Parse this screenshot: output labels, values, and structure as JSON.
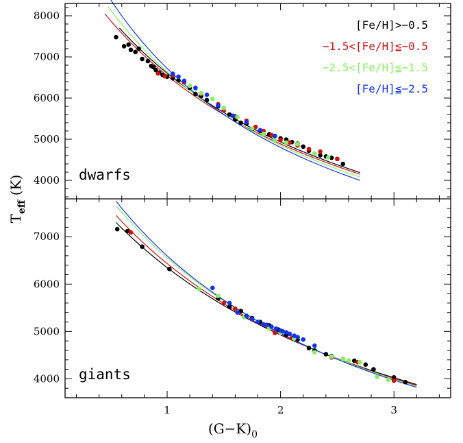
{
  "chart_data": [
    {
      "type": "scatter",
      "panel": "dwarfs",
      "label": "dwarfs",
      "xlabel_main": "(G−K)",
      "xlabel_sub": "0",
      "ylabel_main": "T",
      "ylabel_sub": "eff",
      "ylabel_unit": " (K)",
      "xlim": [
        0.1,
        3.5
      ],
      "ylim": [
        3550,
        8300
      ],
      "xticks": [
        1,
        2,
        3
      ],
      "yticks": [
        4000,
        5000,
        6000,
        7000,
        8000
      ],
      "grid": false,
      "legend_position": "top-right",
      "series": [
        {
          "name": "[Fe/H]>−0.5",
          "color": "#000000",
          "curve": {
            "a": 0.0,
            "x": [
              0.58,
              2.7
            ],
            "t": [
              7700,
              4190
            ]
          },
          "points": [
            [
              0.55,
              7480
            ],
            [
              0.62,
              7260
            ],
            [
              0.66,
              7300
            ],
            [
              0.68,
              7170
            ],
            [
              0.72,
              7120
            ],
            [
              0.75,
              7200
            ],
            [
              0.78,
              6950
            ],
            [
              0.83,
              6900
            ],
            [
              0.86,
              6780
            ],
            [
              0.88,
              6750
            ],
            [
              0.9,
              6680
            ],
            [
              0.93,
              6620
            ],
            [
              0.96,
              6560
            ],
            [
              1.0,
              6520
            ],
            [
              1.05,
              6480
            ],
            [
              1.1,
              6430
            ],
            [
              1.2,
              6250
            ],
            [
              1.25,
              6100
            ],
            [
              1.3,
              6050
            ],
            [
              1.35,
              5950
            ],
            [
              1.45,
              5800
            ],
            [
              1.55,
              5600
            ],
            [
              1.6,
              5480
            ],
            [
              1.65,
              5400
            ],
            [
              1.7,
              5380
            ],
            [
              1.75,
              5250
            ],
            [
              1.82,
              5200
            ],
            [
              1.9,
              5120
            ],
            [
              1.95,
              5080
            ],
            [
              2.0,
              5020
            ],
            [
              2.05,
              4990
            ],
            [
              2.1,
              4930
            ],
            [
              2.15,
              4890
            ],
            [
              2.2,
              4820
            ],
            [
              2.25,
              4720
            ],
            [
              2.3,
              4650
            ],
            [
              2.35,
              4610
            ],
            [
              2.4,
              4580
            ],
            [
              2.45,
              4550
            ],
            [
              2.5,
              4520
            ],
            [
              2.55,
              4400
            ]
          ]
        },
        {
          "name": "−1.5<[Fe/H]≦−0.5",
          "color": "#cc1111",
          "curve": {
            "a": 0.0,
            "x": [
              0.45,
              2.7
            ],
            "t": [
              8050,
              4150
            ]
          },
          "points": [
            [
              0.92,
              6600
            ],
            [
              0.98,
              6530
            ],
            [
              1.05,
              6550
            ],
            [
              1.15,
              6380
            ],
            [
              1.3,
              6100
            ],
            [
              1.45,
              5850
            ],
            [
              1.5,
              5700
            ],
            [
              1.6,
              5560
            ],
            [
              1.7,
              5450
            ],
            [
              1.78,
              5300
            ],
            [
              1.85,
              5200
            ],
            [
              1.92,
              5100
            ],
            [
              2.0,
              4980
            ],
            [
              2.08,
              4920
            ],
            [
              2.15,
              4850
            ],
            [
              2.25,
              4760
            ],
            [
              2.35,
              4700
            ],
            [
              2.5,
              4520
            ]
          ]
        },
        {
          "name": "−2.5<[Fe/H]≦−1.5",
          "color": "#88ee66",
          "curve": {
            "a": 0.0,
            "x": [
              0.48,
              2.7
            ],
            "t": [
              8220,
              4080
            ]
          },
          "points": [
            [
              1.2,
              6300
            ],
            [
              1.25,
              6220
            ],
            [
              1.3,
              6120
            ],
            [
              1.4,
              5980
            ],
            [
              1.5,
              5760
            ],
            [
              1.62,
              5540
            ],
            [
              1.75,
              5260
            ],
            [
              1.85,
              5130
            ],
            [
              1.95,
              4980
            ],
            [
              2.05,
              4920
            ],
            [
              2.15,
              4880
            ],
            [
              2.3,
              4650
            ],
            [
              2.42,
              4560
            ]
          ]
        },
        {
          "name": "[Fe/H]≦−2.5",
          "color": "#1133ee",
          "curve": {
            "a": 0.0,
            "x": [
              0.5,
              2.7
            ],
            "t": [
              8400,
              4000
            ]
          },
          "points": [
            [
              1.05,
              6590
            ],
            [
              1.1,
              6520
            ],
            [
              1.15,
              6420
            ],
            [
              1.25,
              6250
            ],
            [
              1.35,
              6080
            ],
            [
              1.45,
              5820
            ],
            [
              1.58,
              5570
            ],
            [
              1.7,
              5410
            ],
            [
              1.82,
              5220
            ],
            [
              1.95,
              5080
            ]
          ]
        }
      ]
    },
    {
      "type": "scatter",
      "panel": "giants",
      "label": "giants",
      "xlim": [
        0.1,
        3.5
      ],
      "ylim": [
        3600,
        7800
      ],
      "xticks": [
        1,
        2,
        3
      ],
      "yticks": [
        4000,
        5000,
        6000,
        7000
      ],
      "grid": false,
      "series": [
        {
          "name": "[Fe/H]>−0.5",
          "color": "#000000",
          "curve": {
            "a": 0.0,
            "x": [
              0.55,
              3.2
            ],
            "t": [
              7300,
              3880
            ]
          },
          "points": [
            [
              0.56,
              7160
            ],
            [
              0.65,
              7120
            ],
            [
              0.78,
              6790
            ],
            [
              1.02,
              6320
            ],
            [
              1.45,
              5700
            ],
            [
              1.55,
              5520
            ],
            [
              1.65,
              5430
            ],
            [
              1.75,
              5280
            ],
            [
              1.82,
              5200
            ],
            [
              1.9,
              5130
            ],
            [
              1.98,
              5040
            ],
            [
              2.05,
              4930
            ],
            [
              2.15,
              4830
            ],
            [
              2.25,
              4650
            ],
            [
              2.3,
              4600
            ],
            [
              2.4,
              4520
            ],
            [
              2.45,
              4480
            ],
            [
              2.55,
              4420
            ],
            [
              2.65,
              4380
            ],
            [
              2.75,
              4300
            ],
            [
              2.82,
              4200
            ],
            [
              3.0,
              4030
            ],
            [
              3.1,
              3930
            ]
          ]
        },
        {
          "name": "−1.5<[Fe/H]≦−0.5",
          "color": "#cc1111",
          "curve": {
            "a": 0.0,
            "x": [
              0.55,
              3.2
            ],
            "t": [
              7450,
              3860
            ]
          },
          "points": [
            [
              0.68,
              7090
            ],
            [
              1.5,
              5600
            ],
            [
              1.6,
              5480
            ],
            [
              1.95,
              4970
            ],
            [
              2.1,
              4870
            ],
            [
              2.45,
              4450
            ],
            [
              2.68,
              4350
            ],
            [
              3.0,
              3960
            ]
          ]
        },
        {
          "name": "−2.5<[Fe/H]≦−1.5",
          "color": "#88ee66",
          "curve": {
            "a": 0.0,
            "x": [
              0.55,
              3.2
            ],
            "t": [
              7660,
              3840
            ]
          },
          "points": [
            [
              1.28,
              5900
            ],
            [
              1.45,
              5750
            ],
            [
              1.68,
              5300
            ],
            [
              1.8,
              5210
            ],
            [
              1.9,
              5060
            ],
            [
              2.0,
              4970
            ],
            [
              2.12,
              4850
            ],
            [
              2.3,
              4560
            ],
            [
              2.45,
              4470
            ],
            [
              2.55,
              4420
            ],
            [
              2.6,
              4390
            ],
            [
              2.7,
              4350
            ],
            [
              2.85,
              4040
            ],
            [
              2.95,
              3980
            ]
          ]
        },
        {
          "name": "[Fe/H]≦−2.5",
          "color": "#1133ee",
          "curve": {
            "a": 0.0,
            "x": [
              0.55,
              3.2
            ],
            "t": [
              7750,
              3820
            ]
          },
          "points": [
            [
              1.4,
              5920
            ],
            [
              1.55,
              5600
            ],
            [
              1.62,
              5400
            ],
            [
              1.7,
              5330
            ],
            [
              1.75,
              5260
            ],
            [
              1.8,
              5200
            ],
            [
              1.85,
              5150
            ],
            [
              1.88,
              5140
            ],
            [
              1.92,
              5100
            ],
            [
              1.96,
              5060
            ],
            [
              2.0,
              5020
            ],
            [
              2.02,
              5000
            ],
            [
              2.05,
              4980
            ],
            [
              2.08,
              4950
            ],
            [
              2.12,
              4910
            ],
            [
              2.15,
              4880
            ],
            [
              2.2,
              4830
            ],
            [
              2.3,
              4700
            ]
          ]
        }
      ]
    }
  ]
}
